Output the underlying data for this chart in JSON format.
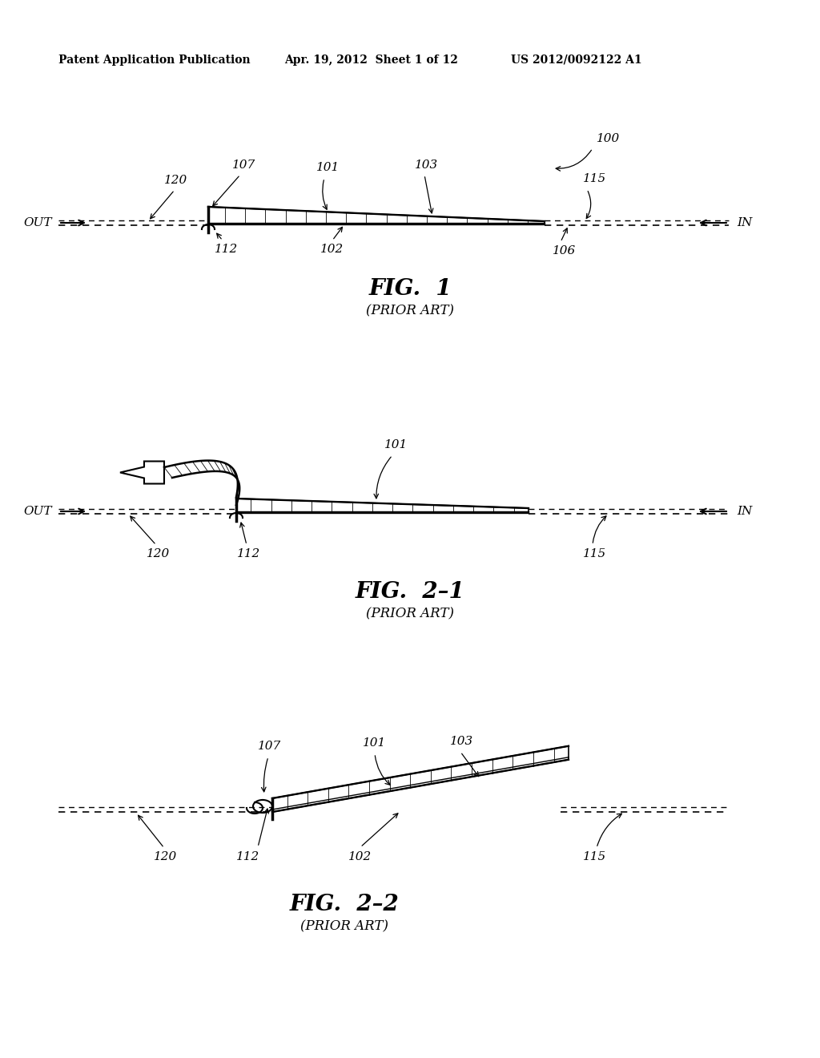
{
  "bg_color": "#ffffff",
  "header_left": "Patent Application Publication",
  "header_mid": "Apr. 19, 2012  Sheet 1 of 12",
  "header_right": "US 2012/0092122 A1"
}
